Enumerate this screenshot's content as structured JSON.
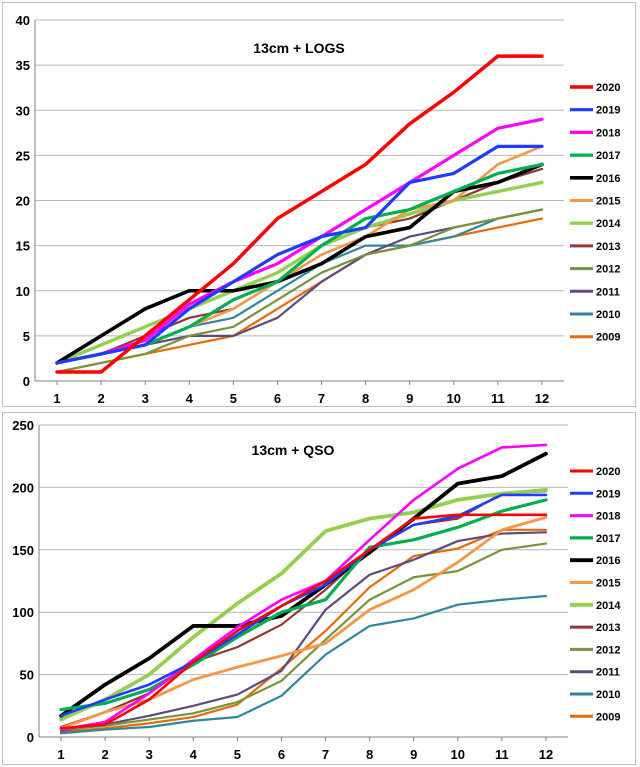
{
  "chart_data": [
    {
      "type": "line",
      "title": "13cm + LOGS",
      "xlabel": "",
      "ylabel": "",
      "x": [
        1,
        2,
        3,
        4,
        5,
        6,
        7,
        8,
        9,
        10,
        11,
        12
      ],
      "xlim": [
        0.5,
        12.5
      ],
      "ylim": [
        0,
        40
      ],
      "yticks": [
        0,
        5,
        10,
        15,
        20,
        25,
        30,
        35,
        40
      ],
      "grid": true,
      "legend": "right",
      "series": [
        {
          "name": "2020",
          "color": "#ff0000",
          "values": [
            1,
            1,
            5,
            9,
            13,
            18,
            21,
            24,
            28.5,
            32,
            36,
            36
          ]
        },
        {
          "name": "2019",
          "color": "#1e3cff",
          "values": [
            2,
            3,
            4,
            8,
            11,
            14,
            16,
            17,
            22,
            23,
            26,
            26
          ]
        },
        {
          "name": "2018",
          "color": "#ff00ff",
          "values": [
            2,
            3,
            4.5,
            8.5,
            11,
            13,
            16,
            19,
            22,
            25,
            28,
            29
          ]
        },
        {
          "name": "2017",
          "color": "#00b050",
          "values": [
            2,
            3,
            4,
            6,
            9,
            11,
            15,
            18,
            19,
            21,
            23,
            24
          ]
        },
        {
          "name": "2016",
          "color": "#000000",
          "values": [
            2,
            5,
            8,
            10,
            10,
            11,
            13,
            16,
            17,
            21,
            22,
            24
          ]
        },
        {
          "name": "2015",
          "color": "#f79646",
          "values": [
            2,
            3,
            4,
            6,
            8,
            11,
            14,
            16,
            19,
            20,
            24,
            26
          ]
        },
        {
          "name": "2014",
          "color": "#92d050",
          "values": [
            2,
            4,
            6,
            8,
            10,
            12,
            15,
            17,
            18.5,
            20,
            21,
            22
          ]
        },
        {
          "name": "2013",
          "color": "#943634",
          "values": [
            2,
            3,
            5,
            7,
            8,
            11,
            15,
            17,
            18,
            20,
            22,
            23.5
          ]
        },
        {
          "name": "2012",
          "color": "#77933c",
          "values": [
            1,
            2,
            3,
            5,
            6,
            9,
            12,
            14,
            15,
            17,
            18,
            19
          ]
        },
        {
          "name": "2011",
          "color": "#604a7b",
          "values": [
            2,
            3,
            4,
            5,
            5,
            7,
            11,
            14,
            16,
            17,
            18,
            19
          ]
        },
        {
          "name": "2010",
          "color": "#31859c",
          "values": [
            2,
            3,
            4,
            6,
            7,
            10,
            13,
            15,
            15,
            16,
            18,
            19
          ]
        },
        {
          "name": "2009",
          "color": "#e46c0a",
          "values": [
            1,
            2,
            3,
            4,
            5,
            8,
            11,
            14,
            15,
            16,
            17,
            18
          ]
        }
      ]
    },
    {
      "type": "line",
      "title": "13cm + QSO",
      "xlabel": "",
      "ylabel": "",
      "x": [
        1,
        2,
        3,
        4,
        5,
        6,
        7,
        8,
        9,
        10,
        11,
        12
      ],
      "xlim": [
        0.5,
        12.5
      ],
      "ylim": [
        0,
        250
      ],
      "yticks": [
        0,
        50,
        100,
        150,
        200,
        250
      ],
      "grid": true,
      "legend": "right",
      "series": [
        {
          "name": "2020",
          "color": "#ff0000",
          "values": [
            7,
            10,
            30,
            60,
            85,
            105,
            125,
            150,
            175,
            178,
            178,
            178
          ]
        },
        {
          "name": "2019",
          "color": "#1e3cff",
          "values": [
            17,
            30,
            42,
            60,
            82,
            105,
            122,
            150,
            170,
            177,
            194,
            194
          ]
        },
        {
          "name": "2018",
          "color": "#ff00ff",
          "values": [
            6,
            12,
            35,
            62,
            88,
            110,
            125,
            158,
            190,
            215,
            232,
            234
          ]
        },
        {
          "name": "2017",
          "color": "#00b050",
          "values": [
            22,
            27,
            38,
            58,
            80,
            100,
            110,
            152,
            158,
            168,
            181,
            190
          ]
        },
        {
          "name": "2016",
          "color": "#000000",
          "values": [
            17,
            42,
            63,
            89,
            89,
            97,
            122,
            148,
            175,
            203,
            209,
            227
          ]
        },
        {
          "name": "2015",
          "color": "#f79646",
          "values": [
            7,
            20,
            30,
            46,
            56,
            65,
            75,
            102,
            118,
            140,
            166,
            176
          ]
        },
        {
          "name": "2014",
          "color": "#92d050",
          "values": [
            14,
            30,
            50,
            80,
            107,
            131,
            165,
            175,
            180,
            190,
            195,
            198
          ]
        },
        {
          "name": "2013",
          "color": "#943634",
          "values": [
            8,
            20,
            35,
            60,
            72,
            90,
            118,
            150,
            170,
            175,
            195,
            197
          ]
        },
        {
          "name": "2012",
          "color": "#77933c",
          "values": [
            6,
            9,
            14,
            19,
            28,
            45,
            78,
            110,
            128,
            133,
            150,
            155
          ]
        },
        {
          "name": "2011",
          "color": "#604a7b",
          "values": [
            5,
            10,
            17,
            25,
            34,
            53,
            102,
            130,
            142,
            157,
            163,
            164
          ]
        },
        {
          "name": "2010",
          "color": "#31859c",
          "values": [
            3,
            6,
            8,
            13,
            16,
            33,
            66,
            89,
            95,
            106,
            110,
            113
          ]
        },
        {
          "name": "2009",
          "color": "#e46c0a",
          "values": [
            4,
            7,
            11,
            16,
            26,
            55,
            85,
            120,
            145,
            151,
            166,
            166
          ]
        }
      ]
    }
  ]
}
